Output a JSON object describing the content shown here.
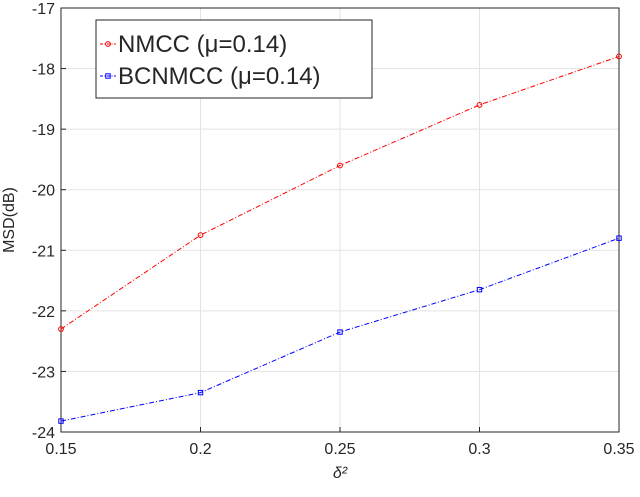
{
  "chart_data": {
    "type": "line",
    "xlabel": "δ²",
    "ylabel": "MSD(dB)",
    "x": [
      0.15,
      0.2,
      0.25,
      0.3,
      0.35
    ],
    "xlim": [
      0.15,
      0.35
    ],
    "ylim": [
      -24,
      -17
    ],
    "x_ticks": [
      "0.15",
      "0.2",
      "0.25",
      "0.3",
      "0.35"
    ],
    "y_ticks": [
      "-24",
      "-23",
      "-22",
      "-21",
      "-20",
      "-19",
      "-18",
      "-17"
    ],
    "grid": true,
    "legend_position": "top-left",
    "series": [
      {
        "name": "NMCC (μ=0.14)",
        "color": "#ff0000",
        "marker": "circle",
        "line_style": "dash-dot",
        "values": [
          -22.3,
          -20.75,
          -19.6,
          -18.6,
          -17.8
        ]
      },
      {
        "name": "BCNMCC (μ=0.14)",
        "color": "#0000ff",
        "marker": "square",
        "line_style": "dash-dot",
        "values": [
          -23.82,
          -23.35,
          -22.35,
          -21.65,
          -20.8
        ]
      }
    ]
  }
}
